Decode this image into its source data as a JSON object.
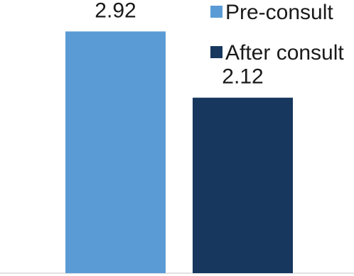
{
  "chart_data": {
    "type": "bar",
    "categories": [
      "Pre-consult",
      "After consult"
    ],
    "values": [
      2.92,
      2.12
    ],
    "value_labels": [
      "2.92",
      "2.12"
    ],
    "colors": [
      "#5b9bd5",
      "#17375e"
    ],
    "title": "",
    "xlabel": "",
    "ylabel": "",
    "ylim": [
      0,
      3.3
    ],
    "grid": false,
    "legend": {
      "position": "top-right",
      "entries": [
        "Pre-consult",
        "After consult"
      ]
    }
  }
}
